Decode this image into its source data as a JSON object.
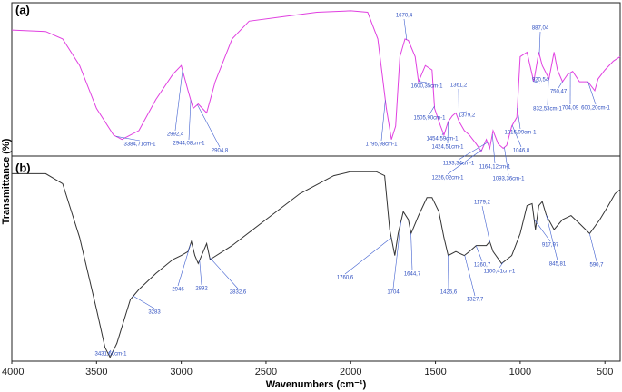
{
  "chart_data": [
    {
      "type": "line",
      "label": "(a)",
      "ylabel": "Transmittance (%)",
      "color": "#e040e0",
      "xlim": [
        4000,
        410
      ],
      "ylim": [
        0,
        100
      ],
      "x": [
        4000,
        3800,
        3700,
        3600,
        3500,
        3400,
        3350,
        3250,
        3150,
        3050,
        3000,
        2960,
        2930,
        2900,
        2850,
        2800,
        2700,
        2600,
        2400,
        2200,
        2000,
        1900,
        1840,
        1790,
        1760,
        1735,
        1710,
        1680,
        1660,
        1620,
        1600,
        1560,
        1520,
        1505,
        1470,
        1450,
        1425,
        1400,
        1380,
        1360,
        1330,
        1300,
        1260,
        1230,
        1200,
        1180,
        1160,
        1130,
        1100,
        1080,
        1050,
        1020,
        1000,
        960,
        920,
        890,
        870,
        830,
        800,
        780,
        750,
        720,
        690,
        650,
        600,
        560,
        540,
        500,
        450,
        410
      ],
      "values": [
        84,
        83,
        78,
        60,
        31,
        13,
        10,
        16,
        37,
        54,
        60,
        43,
        31,
        34,
        28,
        49,
        78,
        90,
        93,
        96,
        97,
        96,
        78,
        31,
        10,
        19,
        66,
        78,
        77,
        66,
        49,
        60,
        57,
        31,
        19,
        13,
        22,
        26,
        28,
        22,
        16,
        13,
        7,
        2,
        10,
        4,
        16,
        7,
        4,
        6,
        19,
        25,
        66,
        69,
        49,
        69,
        60,
        51,
        69,
        57,
        49,
        54,
        56,
        49,
        49,
        43,
        51,
        57,
        63,
        66
      ],
      "annotations": [
        {
          "text": "3384,71cm-1",
          "x": 3384.71
        },
        {
          "text": "2992,4",
          "x": 2992.4
        },
        {
          "text": "2944,08cm-1",
          "x": 2944.08
        },
        {
          "text": "2904,8",
          "x": 2904.8
        },
        {
          "text": "1670,4",
          "x": 1670.4
        },
        {
          "text": "1795,98cm-1",
          "x": 1795.98
        },
        {
          "text": "1600,35cm-1",
          "x": 1600.35
        },
        {
          "text": "1505,90cm-1",
          "x": 1505.9
        },
        {
          "text": "1361,2",
          "x": 1361.2
        },
        {
          "text": "1454,59cm-1",
          "x": 1454.59
        },
        {
          "text": "1424,51cm-1",
          "x": 1424.51
        },
        {
          "text": "1379,2",
          "x": 1379.2
        },
        {
          "text": "1226,02cm-1",
          "x": 1226.02
        },
        {
          "text": "1193,34cm-1",
          "x": 1193.34
        },
        {
          "text": "1164,12cm-1",
          "x": 1164.12
        },
        {
          "text": "1093,36cm-1",
          "x": 1093.36
        },
        {
          "text": "1046,8",
          "x": 1046.8
        },
        {
          "text": "1016,99cm-1",
          "x": 1016.99
        },
        {
          "text": "887,04",
          "x": 887.04
        },
        {
          "text": "920,54",
          "x": 920.54
        },
        {
          "text": "832,53cm-1",
          "x": 832.53
        },
        {
          "text": "750,47",
          "x": 750.47
        },
        {
          "text": "704,09",
          "x": 704.09
        },
        {
          "text": "600,20cm-1",
          "x": 600.2
        }
      ]
    },
    {
      "type": "line",
      "label": "(b)",
      "xlabel": "Wavenumbers (cm⁻¹)",
      "color": "#333333",
      "xlim": [
        4000,
        410
      ],
      "ylim": [
        0,
        100
      ],
      "xticks": [
        4000,
        3500,
        3000,
        2500,
        2000,
        1500,
        1000,
        500
      ],
      "x": [
        4000,
        3800,
        3700,
        3600,
        3500,
        3450,
        3420,
        3380,
        3300,
        3250,
        3150,
        3050,
        3000,
        2960,
        2940,
        2920,
        2900,
        2870,
        2850,
        2830,
        2700,
        2500,
        2300,
        2100,
        2000,
        1850,
        1800,
        1770,
        1740,
        1720,
        1690,
        1660,
        1644,
        1600,
        1550,
        1520,
        1480,
        1450,
        1425,
        1380,
        1330,
        1300,
        1260,
        1200,
        1180,
        1160,
        1110,
        1080,
        1050,
        1000,
        960,
        930,
        910,
        890,
        870,
        845,
        800,
        750,
        700,
        650,
        590,
        530,
        480,
        440,
        410
      ],
      "values": [
        93,
        93,
        88,
        61,
        25,
        6,
        1,
        8,
        30,
        35,
        43,
        50,
        52,
        54,
        59,
        52,
        48,
        54,
        58,
        50,
        57,
        70,
        83,
        92,
        94,
        94,
        92,
        65,
        52,
        63,
        74,
        70,
        63,
        72,
        81,
        81,
        74,
        61,
        52,
        54,
        52,
        54,
        57,
        57,
        59,
        54,
        48,
        50,
        52,
        63,
        77,
        78,
        65,
        77,
        79,
        72,
        65,
        70,
        72,
        68,
        63,
        70,
        77,
        83,
        85
      ],
      "annotations": [
        {
          "text": "3431,60cm-1",
          "x": 3431.6
        },
        {
          "text": "3283",
          "x": 3283
        },
        {
          "text": "2946",
          "x": 2946
        },
        {
          "text": "2892",
          "x": 2892
        },
        {
          "text": "2832,6",
          "x": 2832.6
        },
        {
          "text": "1760,6",
          "x": 1760.6
        },
        {
          "text": "1704",
          "x": 1704
        },
        {
          "text": "1644,7",
          "x": 1644.7
        },
        {
          "text": "1425,6",
          "x": 1425.6
        },
        {
          "text": "1327,7",
          "x": 1327.7
        },
        {
          "text": "1260,7",
          "x": 1260.7
        },
        {
          "text": "1179,2",
          "x": 1179.2
        },
        {
          "text": "1100,41cm-1",
          "x": 1100.41
        },
        {
          "text": "917,97",
          "x": 917.97
        },
        {
          "text": "845,81",
          "x": 845.81
        },
        {
          "text": "590,7",
          "x": 590.7
        }
      ]
    }
  ]
}
